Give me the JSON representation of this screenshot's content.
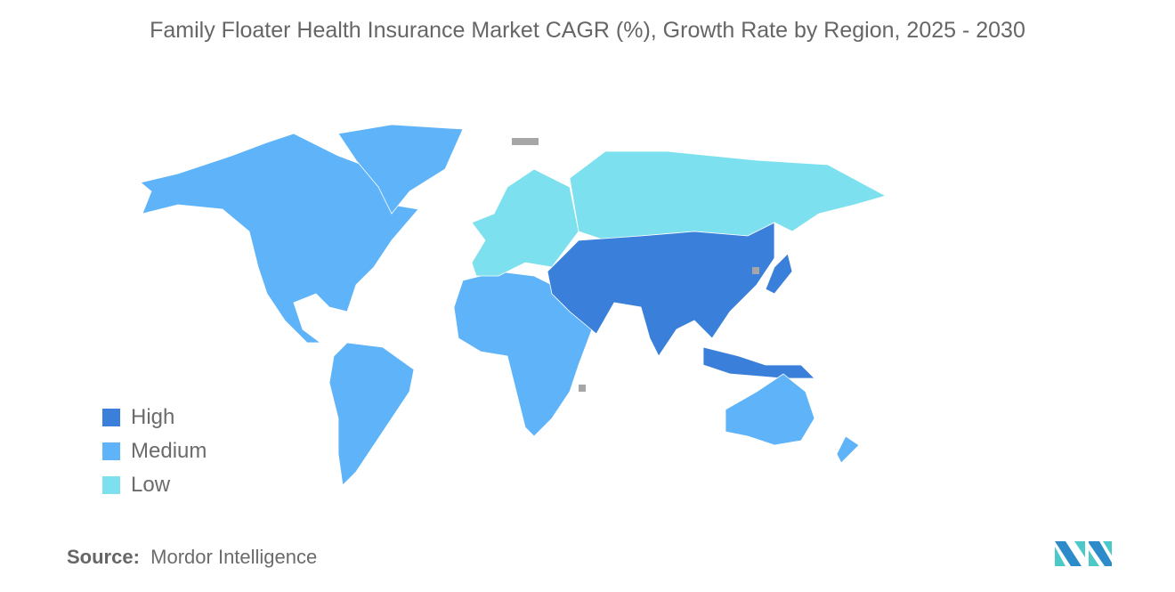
{
  "title": "Family Floater Health Insurance Market CAGR (%), Growth Rate by Region, 2025 - 2030",
  "colors": {
    "high": "#3a7fd9",
    "medium": "#5fb3f8",
    "low": "#7de0ee",
    "no_data": "#a6a6a6"
  },
  "legend": [
    {
      "label": "High",
      "color": "#3a7fd9"
    },
    {
      "label": "Medium",
      "color": "#5fb3f8"
    },
    {
      "label": "Low",
      "color": "#7de0ee"
    }
  ],
  "regions": [
    {
      "name": "North America",
      "level": "medium"
    },
    {
      "name": "Greenland",
      "level": "medium"
    },
    {
      "name": "South America",
      "level": "medium"
    },
    {
      "name": "Africa",
      "level": "medium"
    },
    {
      "name": "Europe",
      "level": "low"
    },
    {
      "name": "Russia",
      "level": "low"
    },
    {
      "name": "Asia",
      "level": "high"
    },
    {
      "name": "Japan",
      "level": "high"
    },
    {
      "name": "Southeast Asia Islands",
      "level": "high"
    },
    {
      "name": "Australia",
      "level": "medium"
    },
    {
      "name": "New Zealand",
      "level": "medium"
    }
  ],
  "source": {
    "label": "Source:",
    "value": "Mordor Intelligence"
  }
}
